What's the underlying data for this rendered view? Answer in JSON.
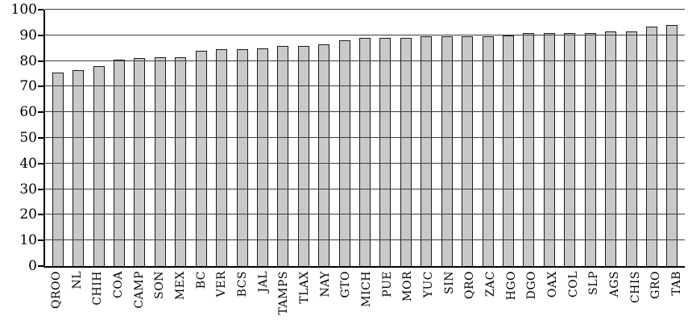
{
  "chart_data": {
    "type": "bar",
    "title": "",
    "xlabel": "",
    "ylabel": "",
    "categories": [
      "QROO",
      "NL",
      "CHIH",
      "COA",
      "CAMP",
      "SON",
      "MEX",
      "BC",
      "VER",
      "BCS",
      "JAL",
      "TAMPS",
      "TLAX",
      "NAY",
      "GTO",
      "MICH",
      "PUE",
      "MOR",
      "YUC",
      "SIN",
      "QRO",
      "ZAC",
      "HGO",
      "DGO",
      "OAX",
      "COL",
      "SLP",
      "AGS",
      "CHIS",
      "GRO",
      "TAB"
    ],
    "values": [
      75.5,
      76.5,
      78,
      80.5,
      81,
      81.5,
      81.5,
      84,
      84.5,
      84.5,
      85,
      86,
      86,
      86.5,
      88,
      89,
      89,
      89,
      89.5,
      89.5,
      89.5,
      89.5,
      90,
      91,
      91,
      91,
      91,
      91.5,
      91.5,
      93.5,
      94
    ],
    "ylim": [
      0,
      100
    ],
    "yticks": [
      0,
      10,
      20,
      30,
      40,
      50,
      60,
      70,
      80,
      90,
      100
    ],
    "grid": true,
    "legend": "none",
    "colors": {
      "bar_fill": "#c9c9c9",
      "bar_border": "#1a1a1a",
      "axis": "#000000",
      "gridline": "#3d3d3d",
      "background": "#ffffff"
    }
  }
}
